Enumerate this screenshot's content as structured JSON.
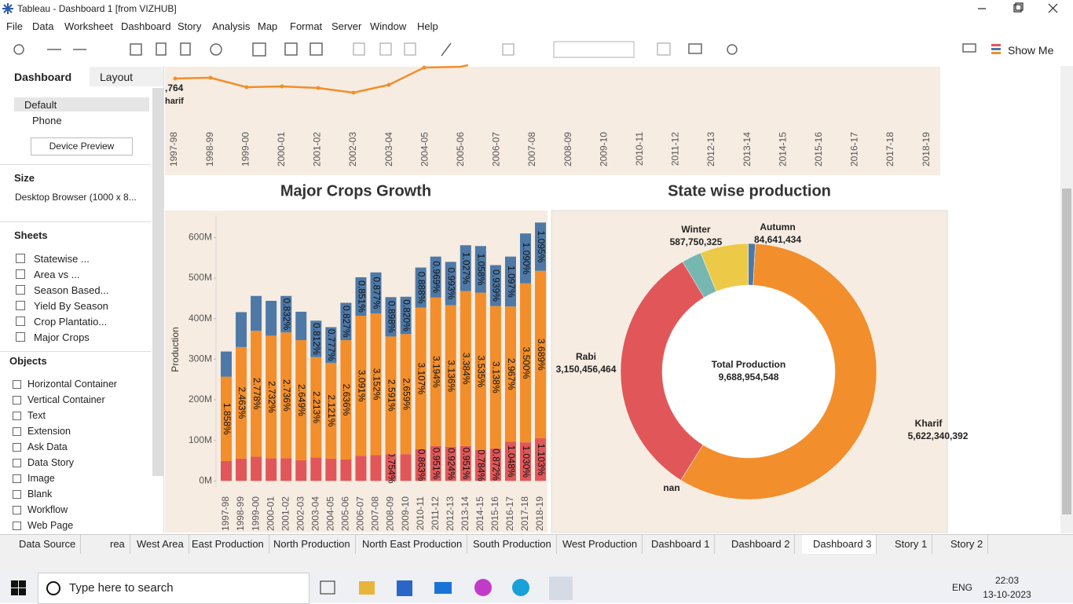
{
  "window": {
    "title": "Tableau - Dashboard 1 [from VIZHUB]"
  },
  "menu": [
    "File",
    "Data",
    "Worksheet",
    "Dashboard",
    "Story",
    "Analysis",
    "Map",
    "Format",
    "Server",
    "Window",
    "Help"
  ],
  "toolbar": {
    "show_me": "Show Me"
  },
  "side_panel": {
    "tabs": [
      "Dashboard",
      "Layout"
    ],
    "devices": [
      "Default",
      "Phone"
    ],
    "device_preview": "Device Preview",
    "size_heading": "Size",
    "size_value": "Desktop Browser (1000 x 8...",
    "sheets_heading": "Sheets",
    "sheets": [
      "Statewise ...",
      "Area vs ...",
      "Season Based...",
      "Yield By Season",
      "Crop Plantatio...",
      "Major Crops"
    ],
    "objects_heading": "Objects",
    "objects": [
      "Horizontal Container",
      "Vertical Container",
      "Text",
      "Extension",
      "Ask Data",
      "Data Story",
      "Image",
      "Blank",
      "Workflow",
      "Web Page"
    ]
  },
  "chart_data": [
    {
      "type": "line",
      "categories": [
        "1997-98",
        "1998-99",
        "1999-00",
        "2000-01",
        "2001-02",
        "2002-03",
        "2003-04",
        "2004-05",
        "2005-06",
        "2006-07",
        "2007-08",
        "2008-09",
        "2009-10",
        "2010-11",
        "2011-12",
        "2012-13",
        "2013-14",
        "2014-15",
        "2015-16",
        "2016-17",
        "2017-18",
        "2018-19"
      ],
      "annotations": [
        ",764",
        "harif"
      ],
      "color": "#f28e2b"
    },
    {
      "type": "bar",
      "stacked": true,
      "title": "Major Crops Growth",
      "y_label": "Production",
      "categories": [
        "1997-98",
        "1998-99",
        "1999-00",
        "2000-01",
        "2001-02",
        "2002-03",
        "2003-04",
        "2004-05",
        "2005-06",
        "2006-07",
        "2007-08",
        "2008-09",
        "2009-10",
        "2010-11",
        "2011-12",
        "2012-13",
        "2013-14",
        "2014-15",
        "2015-16",
        "2016-17",
        "2017-18",
        "2018-19"
      ],
      "ylim": [
        -15,
        655
      ],
      "yticks": [
        {
          "value": 0,
          "label": "0M"
        },
        {
          "value": 100,
          "label": "100M"
        },
        {
          "value": 200,
          "label": "200M"
        },
        {
          "value": 300,
          "label": "300M"
        },
        {
          "value": 400,
          "label": "400M"
        },
        {
          "value": 500,
          "label": "500M"
        },
        {
          "value": 600,
          "label": "600M"
        }
      ],
      "series": [
        {
          "color": "#e15759",
          "values": [
            49,
            55,
            60,
            56,
            56,
            51,
            58,
            55,
            53,
            62,
            64,
            66,
            66,
            78,
            86,
            84,
            86,
            76,
            80,
            97,
            95,
            105
          ],
          "labels": [
            null,
            null,
            null,
            null,
            null,
            null,
            null,
            null,
            null,
            null,
            null,
            "0.754%",
            null,
            "0.863%",
            "0.951%",
            "0.924%",
            "0.951%",
            "0.784%",
            "0.872%",
            "1.048%",
            "1.030%",
            "1.103%"
          ]
        },
        {
          "color": "#f28e2b",
          "values": [
            208,
            275,
            310,
            302,
            310,
            296,
            247,
            236,
            294,
            345,
            349,
            290,
            296,
            349,
            366,
            349,
            382,
            388,
            351,
            333,
            392,
            413
          ],
          "labels": [
            "1.858%",
            "2.463%",
            "2.778%",
            "2.732%",
            "2.736%",
            "2.649%",
            "2.213%",
            "2.121%",
            "2.636%",
            "3.091%",
            "3.152%",
            "2.591%",
            "2.659%",
            "3.107%",
            "3.194%",
            "3.136%",
            "3.384%",
            "3.535%",
            "3.138%",
            "2.967%",
            "3.500%",
            "3.689%"
          ]
        },
        {
          "color": "#4e79a7",
          "values": [
            62,
            86,
            86,
            86,
            90,
            70,
            90,
            88,
            92,
            95,
            101,
            97,
            92,
            99,
            101,
            107,
            113,
            115,
            101,
            123,
            123,
            119
          ],
          "labels": [
            null,
            null,
            null,
            null,
            "0.832%",
            null,
            "0.812%",
            "0.777%",
            "0.827%",
            "0.851%",
            "0.877%",
            "0.898%",
            "0.820%",
            "0.888%",
            "0.969%",
            "0.993%",
            "1.027%",
            "1.058%",
            "0.939%",
            "1.097%",
            "1.090%",
            "1.095%"
          ]
        }
      ]
    },
    {
      "type": "pie",
      "title": "State wise production",
      "center_title": "Total Production",
      "center_text": "9,688,954,548",
      "categories": [
        "Kharif",
        "nan",
        "Rabi",
        null,
        "Winter",
        "Autumn"
      ],
      "values": [
        5622340392,
        765933,
        3150456464,
        243000000,
        587750325,
        84641434
      ],
      "value_labels": [
        "5,622,340,392",
        null,
        "3,150,456,464",
        null,
        "587,750,325",
        "84,641,434"
      ],
      "colors": [
        "#f28e2b",
        "#9c755f",
        "#e15759",
        "#76b7b2",
        "#edc948",
        "#4e79a7"
      ]
    }
  ],
  "sheet_tabs": [
    "Data Source",
    "rea",
    "West Area",
    "East Production",
    "North Production",
    "North East Production",
    "South Production",
    "West Production",
    "Dashboard 1",
    "Dashboard 2",
    "Dashboard 3",
    "Story 1",
    "Story 2"
  ],
  "taskbar": {
    "search": "Type here to search",
    "language": "ENG",
    "time": "22:03",
    "date": "13-10-2023"
  }
}
